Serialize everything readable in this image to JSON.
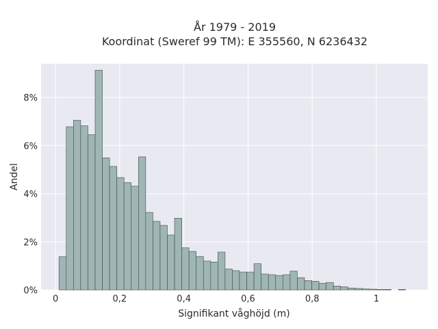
{
  "chart_data": {
    "type": "bar",
    "title_line1": "År 1979 - 2019",
    "title_line2": "Koordinat (Sweref 99 TM): E 355560, N 6236432",
    "xlabel": "Signifikant våghöjd (m)",
    "ylabel": "Andel",
    "xlim": [
      -0.045,
      1.16
    ],
    "ylim": [
      0,
      9.4
    ],
    "x_ticks": [
      0,
      0.2,
      0.4,
      0.6,
      0.8,
      1
    ],
    "x_tick_labels": [
      "0",
      "0,2",
      "0,4",
      "0,6",
      "0,8",
      "1"
    ],
    "y_ticks": [
      0,
      2,
      4,
      6,
      8
    ],
    "y_tick_labels": [
      "0%",
      "2%",
      "4%",
      "6%",
      "8%"
    ],
    "grid": true,
    "bin_width": 0.0225,
    "bin_start": 0.011,
    "values": [
      1.38,
      6.78,
      7.05,
      6.82,
      6.45,
      9.13,
      5.49,
      5.13,
      4.67,
      4.46,
      4.31,
      5.53,
      3.22,
      2.85,
      2.68,
      2.28,
      2.98,
      1.75,
      1.6,
      1.39,
      1.2,
      1.16,
      1.57,
      0.87,
      0.8,
      0.74,
      0.74,
      1.09,
      0.66,
      0.63,
      0.6,
      0.63,
      0.78,
      0.51,
      0.39,
      0.36,
      0.28,
      0.31,
      0.16,
      0.13,
      0.08,
      0.06,
      0.04,
      0.03,
      0.02,
      0.02,
      0.0,
      0.02
    ],
    "colors": {
      "bar_fill": "#9fb6b4",
      "bar_stroke": "#3a4a48",
      "plot_bg": "#e9e9f2",
      "grid": "#ffffff"
    }
  }
}
